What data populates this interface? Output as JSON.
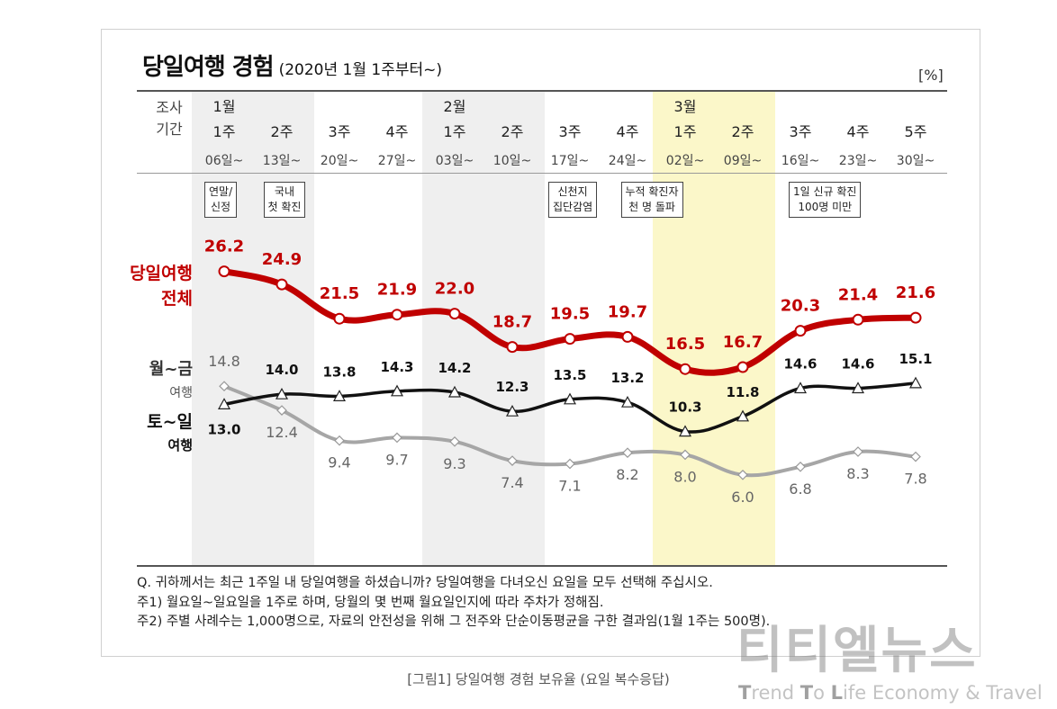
{
  "title": "당일여행 경험",
  "subtitle": "(2020년 1월 1주부터~)",
  "unit": "[%]",
  "survey_period_label": [
    "조사",
    "기간"
  ],
  "columns": [
    {
      "month": "1월",
      "week": "1주",
      "date": "06일~"
    },
    {
      "month": "",
      "week": "2주",
      "date": "13일~"
    },
    {
      "month": "",
      "week": "3주",
      "date": "20일~"
    },
    {
      "month": "",
      "week": "4주",
      "date": "27일~"
    },
    {
      "month": "2월",
      "week": "1주",
      "date": "03일~"
    },
    {
      "month": "",
      "week": "2주",
      "date": "10일~"
    },
    {
      "month": "",
      "week": "3주",
      "date": "17일~"
    },
    {
      "month": "",
      "week": "4주",
      "date": "24일~"
    },
    {
      "month": "3월",
      "week": "1주",
      "date": "02일~"
    },
    {
      "month": "",
      "week": "2주",
      "date": "09일~"
    },
    {
      "month": "",
      "week": "3주",
      "date": "16일~"
    },
    {
      "month": "",
      "week": "4주",
      "date": "23일~"
    },
    {
      "month": "",
      "week": "5주",
      "date": "30일~"
    }
  ],
  "callouts": [
    {
      "col": 0,
      "lines": [
        "연말/",
        "신정"
      ]
    },
    {
      "col": 1,
      "lines": [
        "국내",
        "첫 확진"
      ]
    },
    {
      "col": 6,
      "lines": [
        "신천지",
        "집단감염"
      ]
    },
    {
      "col": 7,
      "lines": [
        "누적 확진자",
        "천 명 돌파"
      ]
    },
    {
      "col": 10,
      "lines": [
        "1일 신규 확진",
        "100명 미만"
      ]
    }
  ],
  "series_labels": {
    "total": [
      "당일여행",
      "전체"
    ],
    "weekday": [
      "월~금",
      "여행"
    ],
    "weekend": [
      "토~일",
      "여행"
    ]
  },
  "chart_data": {
    "type": "line",
    "x": [
      "1월 1주",
      "2주",
      "3주",
      "4주",
      "2월 1주",
      "2주",
      "3주",
      "4주",
      "3월 1주",
      "2주",
      "3주",
      "4주",
      "5주"
    ],
    "series": [
      {
        "name": "당일여행 전체",
        "color": "#c00000",
        "marker": "circle",
        "values": [
          26.2,
          24.9,
          21.5,
          21.9,
          22.0,
          18.7,
          19.5,
          19.7,
          16.5,
          16.7,
          20.3,
          21.4,
          21.6
        ]
      },
      {
        "name": "토~일 여행",
        "color": "#111111",
        "marker": "triangle",
        "values": [
          13.0,
          14.0,
          13.8,
          14.3,
          14.2,
          12.3,
          13.5,
          13.2,
          10.3,
          11.8,
          14.6,
          14.6,
          15.1
        ]
      },
      {
        "name": "월~금 여행",
        "color": "#a6a6a6",
        "marker": "diamond",
        "values": [
          14.8,
          12.4,
          9.4,
          9.7,
          9.3,
          7.4,
          7.1,
          8.2,
          8.0,
          6.0,
          6.8,
          8.3,
          7.8
        ]
      }
    ],
    "highlight_columns": {
      "gray": [
        0,
        1,
        4,
        5
      ],
      "yellow": [
        8,
        9
      ]
    }
  },
  "notes": [
    "Q. 귀하께서는 최근 1주일 내 당일여행을 하셨습니까? 당일여행을 다녀오신 요일을 모두 선택해 주십시오.",
    "주1) 월요일~일요일을 1주로 하며, 당월의 몇 번째 월요일인지에 따라 주차가 정해짐.",
    "주2) 주별 사례수는 1,000명으로, 자료의 안전성을 위해 그 전주와 단순이동평균을 구한 결과임(1월 1주는 500명)."
  ],
  "caption": "[그림1] 당일여행 경험 보유율 (요일 복수응답)",
  "watermark": {
    "brand": "티티엘뉴스",
    "tag_prefix": [
      "T",
      "rend ",
      "T",
      "o ",
      "L",
      "ife Economy & Travel"
    ]
  }
}
